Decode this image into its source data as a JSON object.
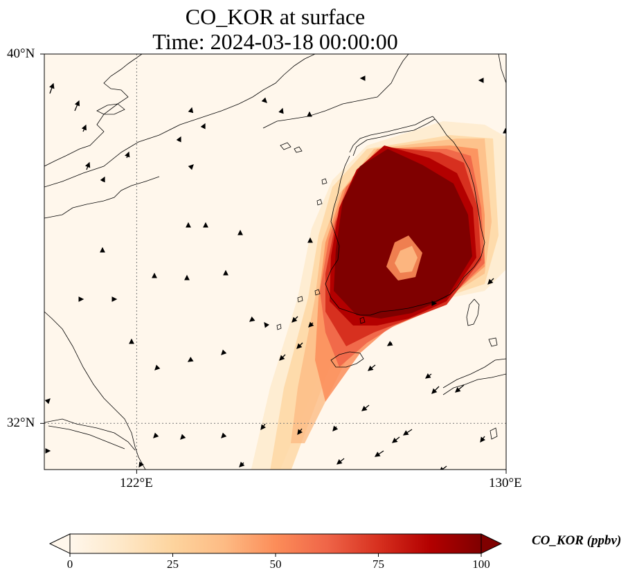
{
  "title": {
    "line1": "CO_KOR at surface",
    "line2": "Time: 2024-03-18 00:00:00"
  },
  "axes": {
    "lat_ticks": [
      "40°N",
      "32°N"
    ],
    "lon_ticks": [
      "122°E",
      "130°E"
    ],
    "lon_range": [
      120,
      130
    ],
    "lat_range": [
      31,
      40
    ],
    "gridlines": true,
    "gridline_style": "dotted"
  },
  "colorbar": {
    "label": "CO_KOR (ppbv)",
    "ticks": [
      "0",
      "25",
      "50",
      "75",
      "100"
    ],
    "range": [
      0,
      100
    ],
    "extend": "both",
    "colormap": "OrRd",
    "colors": [
      "#fff7ec",
      "#fee8c8",
      "#fdd49e",
      "#fdbb84",
      "#fc8d59",
      "#ef6548",
      "#d7301f",
      "#b30000",
      "#7f0000"
    ]
  },
  "map_background_color": "#fff7ec",
  "coastline_color": "#000000",
  "wind_vector_color": "#000000"
}
